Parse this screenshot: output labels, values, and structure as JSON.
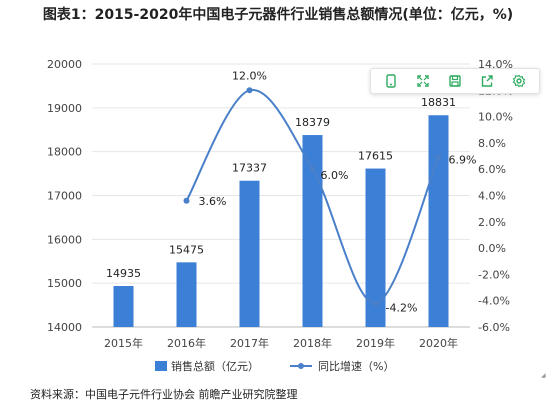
{
  "title": "图表1：2015-2020年中国电子元器件行业销售总额情况(单位：亿元，%)",
  "source": "资料来源：中国电子元件行业协会 前瞻产业研究院整理",
  "toolbar": {
    "icons": [
      "phone-icon",
      "fullscreen-icon",
      "save-icon",
      "share-icon",
      "settings-icon"
    ],
    "color": "#2eab5f"
  },
  "chart_data": {
    "type": "bar",
    "categories": [
      "2015年",
      "2016年",
      "2017年",
      "2018年",
      "2019年",
      "2020年"
    ],
    "series": [
      {
        "name": "销售总额（亿元）",
        "type": "bar",
        "axis": "left",
        "color": "#3c7fd6",
        "values": [
          14935,
          15475,
          17337,
          18379,
          17615,
          18831
        ]
      },
      {
        "name": "同比增速（%）",
        "type": "line",
        "axis": "right",
        "color": "#4a7fc9",
        "values": [
          null,
          3.6,
          12.0,
          6.0,
          -4.2,
          6.9
        ],
        "labels": [
          "",
          "3.6%",
          "12.0%",
          "6.0%",
          "-4.2%",
          "6.9%"
        ]
      }
    ],
    "ylim_left": [
      14000,
      20000
    ],
    "yticks_left": [
      "14000",
      "15000",
      "16000",
      "17000",
      "18000",
      "19000",
      "20000"
    ],
    "ylim_right": [
      -6,
      14
    ],
    "yticks_right": [
      "-6.0%",
      "-4.0%",
      "-2.0%",
      "0.0%",
      "2.0%",
      "4.0%",
      "6.0%",
      "8.0%",
      "10.0%",
      "12.0%",
      "14.0%"
    ],
    "grid": true,
    "legend_position": "bottom"
  }
}
